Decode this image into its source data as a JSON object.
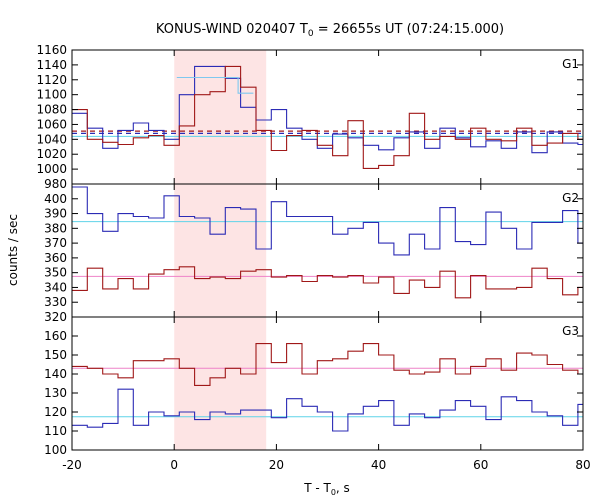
{
  "title_prefix": "KONUS-WIND 020407 T",
  "title_sub": "0",
  "title_suffix": " = 26655s UT (07:24:15.000)",
  "xlabel_prefix": "T - T",
  "xlabel_sub": "0",
  "xlabel_suffix": ", s",
  "ylabel": "counts / sec",
  "colors": {
    "blue": "#2b2bb5",
    "red": "#a01818",
    "cyan_bg": "#5fd3e8",
    "pink_bg": "#ee82c8",
    "shade": "#fde4e4",
    "light_blue": "#7ec8ef"
  },
  "chart_data": {
    "type": "line",
    "x_range": [
      -20,
      80
    ],
    "x_ticks": [
      -20,
      0,
      20,
      40,
      60,
      80
    ],
    "shaded_interval": [
      0,
      18
    ],
    "bin_edges": [
      -20,
      -17,
      -14,
      -11,
      -8,
      -5,
      -2,
      1,
      4,
      7,
      10,
      13,
      16,
      19,
      22,
      25,
      28,
      31,
      34,
      37,
      40,
      43,
      46,
      49,
      52,
      55,
      58,
      61,
      64,
      67,
      70,
      73,
      76,
      79,
      80
    ],
    "panels": [
      {
        "name": "G1",
        "y_range": [
          980,
          1160
        ],
        "y_ticks": [
          980,
          1000,
          1020,
          1040,
          1060,
          1080,
          1100,
          1120,
          1140,
          1160
        ],
        "backgrounds": [
          {
            "color_key": "cyan_bg",
            "value": 1044,
            "style": "solid"
          },
          {
            "color_key": "blue",
            "value": 1048,
            "style": "dashed"
          },
          {
            "color_key": "red",
            "value": 1051,
            "style": "dashed"
          }
        ],
        "series": [
          {
            "color_key": "blue",
            "values": [
              1075,
              1055,
              1028,
              1052,
              1062,
              1052,
              1040,
              1100,
              1138,
              1138,
              1122,
              1083,
              1066,
              1080,
              1055,
              1040,
              1028,
              1047,
              1042,
              1032,
              1026,
              1042,
              1050,
              1028,
              1055,
              1042,
              1030,
              1038,
              1028,
              1050,
              1022,
              1050,
              1035,
              1033
            ]
          },
          {
            "color_key": "red",
            "values": [
              1080,
              1040,
              1036,
              1033,
              1042,
              1045,
              1032,
              1058,
              1100,
              1104,
              1138,
              1110,
              1052,
              1025,
              1045,
              1052,
              1032,
              1018,
              1065,
              1001,
              1005,
              1018,
              1075,
              1040,
              1044,
              1040,
              1055,
              1040,
              1038,
              1055,
              1032,
              1035,
              1048,
              1040
            ]
          },
          {
            "color_key": "light_blue",
            "x_from": 0.5,
            "x_to": 15.5,
            "values": [
              1123,
              1123,
              1123,
              1123,
              1102
            ]
          }
        ]
      },
      {
        "name": "G2",
        "y_range": [
          320,
          410
        ],
        "y_ticks": [
          320,
          330,
          340,
          350,
          360,
          370,
          380,
          390,
          400
        ],
        "backgrounds": [
          {
            "color_key": "cyan_bg",
            "value": 384.5,
            "style": "solid"
          },
          {
            "color_key": "pink_bg",
            "value": 347.5,
            "style": "solid"
          }
        ],
        "series": [
          {
            "color_key": "blue",
            "values": [
              408,
              390,
              378,
              390,
              388,
              387,
              402,
              388,
              387,
              376,
              394,
              393,
              366,
              398,
              388,
              388,
              388,
              376,
              380,
              384,
              370,
              362,
              376,
              366,
              394,
              371,
              369,
              391,
              380,
              366,
              384,
              384,
              392,
              370
            ]
          },
          {
            "color_key": "red",
            "values": [
              338,
              353,
              339,
              346,
              339,
              349,
              352,
              354,
              346,
              347,
              346,
              351,
              352,
              347,
              348,
              344,
              348,
              347,
              348,
              343,
              347,
              336,
              345,
              340,
              351,
              333,
              348,
              339,
              339,
              340,
              353,
              346,
              335,
              340
            ]
          }
        ]
      },
      {
        "name": "G3",
        "y_range": [
          100,
          170
        ],
        "y_ticks": [
          100,
          110,
          120,
          130,
          140,
          150,
          160
        ],
        "backgrounds": [
          {
            "color_key": "cyan_bg",
            "value": 117.5,
            "style": "solid"
          },
          {
            "color_key": "pink_bg",
            "value": 143,
            "style": "solid"
          }
        ],
        "series": [
          {
            "color_key": "blue",
            "values": [
              113,
              112,
              114,
              132,
              113,
              120,
              118,
              120,
              116,
              120,
              119,
              121,
              121,
              117,
              127,
              123,
              120,
              110,
              119,
              123,
              126,
              113,
              119,
              117,
              121,
              126,
              123,
              116,
              128,
              126,
              120,
              118,
              113,
              124
            ]
          },
          {
            "color_key": "red",
            "values": [
              144,
              143,
              140,
              138,
              147,
              147,
              148,
              143,
              134,
              138,
              143,
              140,
              156,
              146,
              156,
              140,
              147,
              148,
              152,
              156,
              150,
              142,
              140,
              141,
              148,
              140,
              144,
              148,
              142,
              151,
              150,
              145,
              142,
              140
            ]
          }
        ]
      }
    ]
  }
}
